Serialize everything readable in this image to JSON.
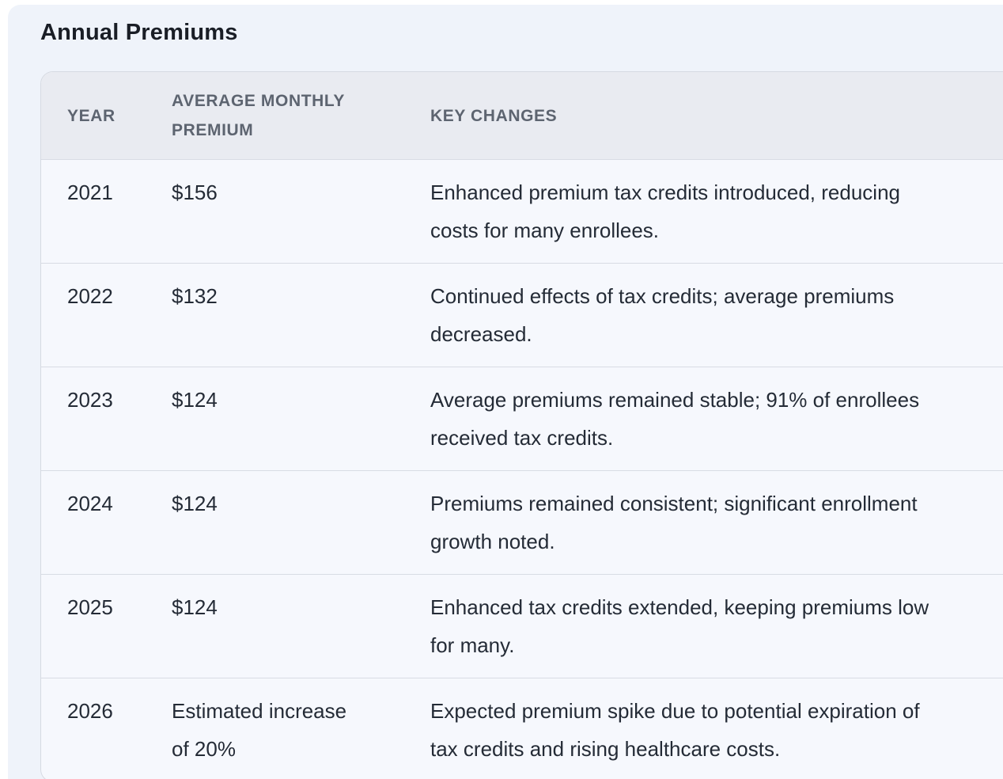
{
  "page": {
    "title": "Annual Premiums"
  },
  "colors": {
    "page_background": "#ffffff",
    "panel_background": "#eff3fa",
    "table_row_background": "#f6f8fd",
    "table_header_background": "#e9ebf1",
    "table_border": "#d6dae2",
    "title_text": "#1a1e26",
    "header_text": "#5d6470",
    "cell_text": "#242b36"
  },
  "table": {
    "columns": [
      {
        "id": "year",
        "label": "YEAR"
      },
      {
        "id": "premium",
        "label": "AVERAGE MONTHLY\nPREMIUM"
      },
      {
        "id": "changes",
        "label": "KEY CHANGES"
      }
    ],
    "rows": [
      {
        "year": "2021",
        "premium": "$156",
        "changes": "Enhanced premium tax credits introduced, reducing\ncosts for many enrollees."
      },
      {
        "year": "2022",
        "premium": "$132",
        "changes": "Continued effects of tax credits; average premiums\ndecreased."
      },
      {
        "year": "2023",
        "premium": "$124",
        "changes": "Average premiums remained stable; 91% of enrollees\nreceived tax credits."
      },
      {
        "year": "2024",
        "premium": "$124",
        "changes": "Premiums remained consistent; significant enrollment\ngrowth noted."
      },
      {
        "year": "2025",
        "premium": "$124",
        "changes": "Enhanced tax credits extended, keeping premiums low\nfor many."
      },
      {
        "year": "2026",
        "premium": "Estimated increase\nof 20%",
        "changes": "Expected premium spike due to potential expiration of\ntax credits and rising healthcare costs."
      }
    ]
  }
}
